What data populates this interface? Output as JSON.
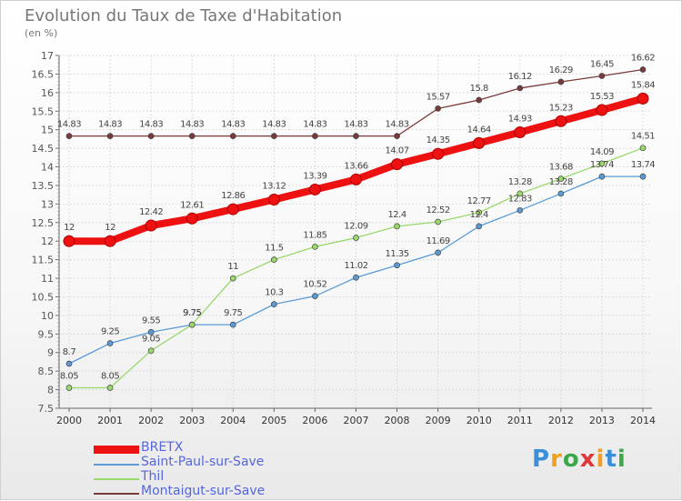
{
  "header": {
    "title": "Evolution du Taux de Taxe d'Habitation",
    "subtitle": "(en %)"
  },
  "logo": {
    "text": "Proxiti",
    "letters": [
      "P",
      "r",
      "o",
      "x",
      "i",
      "t",
      "i"
    ],
    "colors": [
      "#3b8fd8",
      "#f0a020",
      "#3ba84a",
      "#e03838",
      "#f0a020",
      "#3b8fd8",
      "#3ba84a"
    ]
  },
  "chart_data": {
    "type": "line",
    "title": "Evolution du Taux de Taxe d'Habitation",
    "ylabel": "(en %)",
    "x": [
      2000,
      2001,
      2002,
      2003,
      2004,
      2005,
      2006,
      2007,
      2008,
      2009,
      2010,
      2011,
      2012,
      2013,
      2014
    ],
    "ylim": [
      7.5,
      17
    ],
    "yticks": [
      7.5,
      8,
      8.5,
      9,
      9.5,
      10,
      10.5,
      11,
      11.5,
      12,
      12.5,
      13,
      13.5,
      14,
      14.5,
      15,
      15.5,
      16,
      16.5,
      17
    ],
    "grid": true,
    "legend": "bottom-left",
    "series": [
      {
        "name": "BRETX",
        "color": "#ee1111",
        "values": [
          12,
          12,
          12.42,
          12.61,
          12.86,
          13.12,
          13.39,
          13.66,
          14.07,
          14.35,
          14.64,
          14.93,
          15.23,
          15.53,
          15.84
        ],
        "labels": [
          "12",
          "12",
          "12.42",
          "12.61",
          "12.86",
          "13.12",
          "13.39",
          "13.66",
          "14.07",
          "14.35",
          "14.64",
          "14.93",
          "15.23",
          "15.53",
          "15.84"
        ]
      },
      {
        "name": "Saint-Paul-sur-Save",
        "color": "#5b9bd5",
        "values": [
          8.7,
          9.25,
          9.55,
          9.75,
          9.75,
          10.3,
          10.52,
          11.02,
          11.35,
          11.69,
          12.4,
          12.83,
          13.28,
          13.74,
          13.74
        ],
        "labels": [
          "8.7",
          "9.25",
          "9.55",
          "9.75",
          "9.75",
          "10.3",
          "10.52",
          "11.02",
          "11.35",
          "11.69",
          "12.4",
          "12.83",
          "13.28",
          "13.74",
          "13.74"
        ]
      },
      {
        "name": "Thil",
        "color": "#99d86b",
        "values": [
          8.05,
          8.05,
          9.05,
          9.75,
          11,
          11.5,
          11.85,
          12.09,
          12.4,
          12.52,
          12.77,
          13.28,
          13.68,
          14.09,
          14.51
        ],
        "labels": [
          "8.05",
          "8.05",
          "9.05",
          "9.75",
          "11",
          "11.5",
          "11.85",
          "12.09",
          "12.4",
          "12.52",
          "12.77",
          "13.28",
          "13.68",
          "14.09",
          "14.51"
        ]
      },
      {
        "name": "Montaigut-sur-Save",
        "color": "#7a3a3a",
        "values": [
          14.83,
          14.83,
          14.83,
          14.83,
          14.83,
          14.83,
          14.83,
          14.83,
          14.83,
          15.57,
          15.8,
          16.12,
          16.29,
          16.45,
          16.62
        ],
        "labels": [
          "14.83",
          "14.83",
          "14.83",
          "14.83",
          "14.83",
          "14.83",
          "14.83",
          "14.83",
          "14.83",
          "15.57",
          "15.8",
          "16.12",
          "16.29",
          "16.45",
          "16.62"
        ]
      }
    ]
  }
}
